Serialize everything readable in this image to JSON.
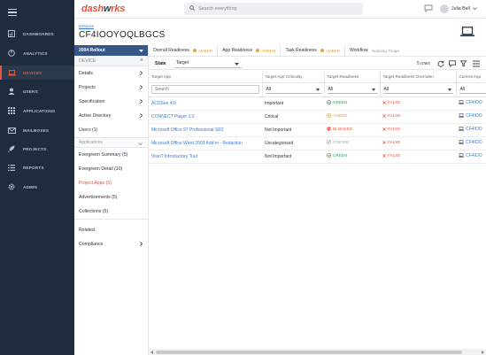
{
  "nav": {
    "items": [
      {
        "label": "DASHBOARDS",
        "icon": "dashboard-icon"
      },
      {
        "label": "ANALYTICS",
        "icon": "analytics-icon"
      },
      {
        "label": "DEVICES",
        "icon": "laptop-icon"
      },
      {
        "label": "USERS",
        "icon": "user-icon"
      },
      {
        "label": "APPLICATIONS",
        "icon": "grid-icon"
      },
      {
        "label": "MAILBOXES",
        "icon": "mail-icon"
      },
      {
        "label": "PROJECTS",
        "icon": "rocket-icon"
      },
      {
        "label": "REPORTS",
        "icon": "list-icon"
      },
      {
        "label": "ADMIN",
        "icon": "gear-icon"
      }
    ],
    "active": "DEVICES"
  },
  "header": {
    "logo_part1": "dash",
    "logo_part2": "w",
    "logo_part3": "rks",
    "search_placeholder": "Search everything",
    "user_name": "Julia Bell"
  },
  "breadcrumb": "Devices",
  "page_title": "CF4IOOYOQLBGCS",
  "panel": {
    "rollout": "2004 Rollout",
    "section_title": "DEVICE",
    "items": [
      {
        "label": "Details",
        "arrow": true
      },
      {
        "label": "Projects",
        "arrow": true
      },
      {
        "label": "Specification",
        "arrow": true
      },
      {
        "label": "Active Directory",
        "arrow": true
      },
      {
        "label": "Users (1)",
        "arrow": false
      }
    ],
    "applications_header": "Applications",
    "app_items": [
      {
        "label": "Evergreen Summary (5)"
      },
      {
        "label": "Evergreen Detail (10)"
      },
      {
        "label": "Project Apps (5)",
        "active": true
      },
      {
        "label": "Advertisements (5)"
      },
      {
        "label": "Collections (5)"
      }
    ],
    "related": "Related",
    "compliance": "Compliance"
  },
  "readiness_tabs": [
    {
      "label": "Overall Readiness",
      "status": "AMBER"
    },
    {
      "label": "App Readiness",
      "status": "AMBER"
    },
    {
      "label": "Task Readiness",
      "status": "AMBER"
    },
    {
      "label": "Workflow",
      "status": "Awaiting Triage"
    }
  ],
  "toolbar": {
    "state_tab": "State",
    "target_value": "Target",
    "rows": "5 rows"
  },
  "table": {
    "columns": [
      "Target App",
      "Target App Criticality",
      "Target Readiness",
      "Target Readiness Overriden",
      "Current App"
    ],
    "filters": {
      "search_placeholder": "Search",
      "criticality": "All",
      "readiness": "All",
      "overriden": "All",
      "current": "All"
    },
    "rows": [
      {
        "app": "ACDSee 4.0",
        "criticality": "Important",
        "readiness": "GREEN",
        "overriden": "FALSE",
        "current": "CF4IOO"
      },
      {
        "app": "CONNECT Player 1.0",
        "criticality": "Critical",
        "readiness": "AMBER",
        "overriden": "FALSE",
        "current": "CF4IOO"
      },
      {
        "app": "Microsoft Office 97 Professional SR2",
        "criticality": "Not Important",
        "readiness": "BLOCKED",
        "overriden": "FALSE",
        "current": "CF4IOO"
      },
      {
        "app": "Microsoft Office Word 2003 Add-in - Redaction",
        "criticality": "Uncategorised",
        "readiness": "IGNORE",
        "overriden": "FALSE",
        "current": "CF4IOO"
      },
      {
        "app": "Visio? Introductory Tour",
        "criticality": "Not Important",
        "readiness": "GREEN",
        "overriden": "FALSE",
        "current": "CF4IOO"
      }
    ]
  },
  "colors": {
    "nav_bg": "#1e2c3d",
    "accent": "#e8533d",
    "rollout": "#37578a",
    "green": "#3aa356",
    "amber": "#e8a33d",
    "blocked": "#e8533d",
    "link": "#3a7bd5"
  }
}
